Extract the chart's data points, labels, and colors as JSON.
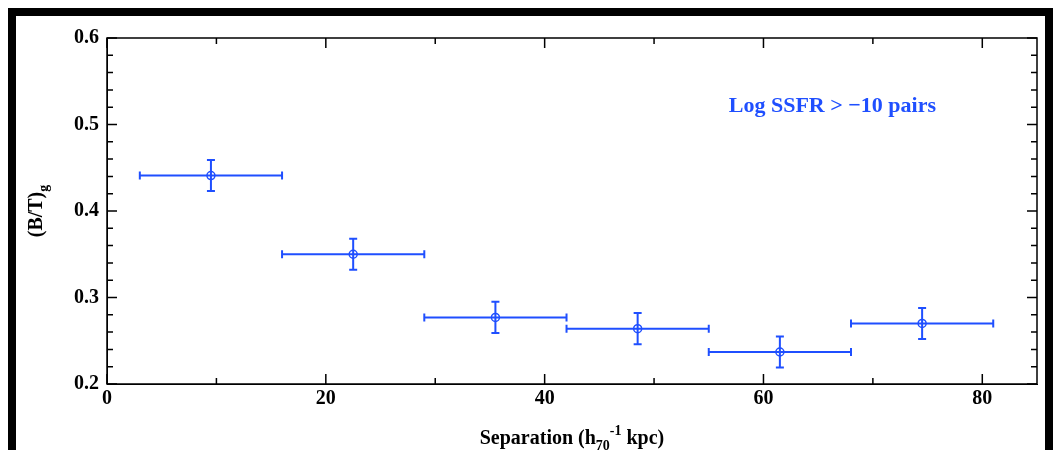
{
  "chart_data": {
    "type": "scatter",
    "xlabel": "Separation (h$_{70}$$^{-1}$ kpc)",
    "ylabel": "(B/T)$_{g}$",
    "x": [
      9.5,
      22.5,
      35.5,
      48.5,
      61.5,
      74.5
    ],
    "series": [
      {
        "color": "#1f4fff",
        "values": [
          0.441,
          0.35,
          0.277,
          0.264,
          0.237,
          0.27
        ],
        "errors": [
          0.018,
          0.018,
          0.018,
          0.018,
          0.018,
          0.018
        ],
        "xerrors": [
          6.5,
          6.5,
          6.5,
          6.5,
          6.5,
          6.5
        ]
      }
    ],
    "annotations": [
      "Log SSFR > −10 pairs"
    ],
    "xlim": [
      0,
      85
    ],
    "xticks": [
      0,
      {
        "value": 10,
        "label": null
      },
      20,
      {
        "value": 30,
        "label": null
      },
      40,
      {
        "value": 50,
        "label": null
      },
      60,
      {
        "value": 70,
        "label": null
      },
      80
    ],
    "ylim": [
      0.2,
      0.6
    ],
    "yticks": [
      0.2,
      {
        "value": 0.22,
        "label": null
      },
      {
        "value": 0.24,
        "label": null
      },
      {
        "value": 0.26,
        "label": null
      },
      {
        "value": 0.28,
        "label": null
      },
      0.3,
      {
        "value": 0.32,
        "label": null
      },
      {
        "value": 0.34,
        "label": null
      },
      {
        "value": 0.36,
        "label": null
      },
      {
        "value": 0.38,
        "label": null
      },
      0.4,
      {
        "value": 0.42,
        "label": null
      },
      {
        "value": 0.44,
        "label": null
      },
      {
        "value": 0.46,
        "label": null
      },
      {
        "value": 0.48,
        "label": null
      },
      0.5,
      {
        "value": 0.52,
        "label": null
      },
      {
        "value": 0.54,
        "label": null
      },
      {
        "value": 0.56,
        "label": null
      },
      {
        "value": 0.58,
        "label": null
      },
      0.6
    ],
    "marker": "circle",
    "grid": false,
    "legend": false
  }
}
